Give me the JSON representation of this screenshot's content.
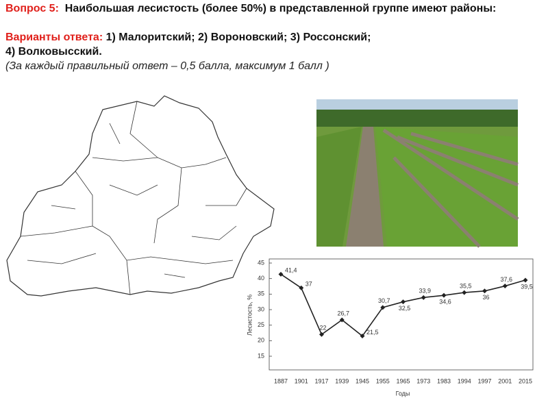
{
  "header": {
    "question_label": "Вопрос 5:",
    "question_text": "Наибольшая лесистость (более 50%) в представленной группе имеют районы:",
    "options_label": "Варианты ответа:",
    "options_line1": "1) Малоритский; 2) Вороновский; 3) Россонский;",
    "options_line2": "4) Волковысский.",
    "note": "(За каждый правильный ответ – 0,5 балла, максимум 1 балл )"
  },
  "chart_data": {
    "type": "line",
    "x_label": "Годы",
    "y_label": "Лесистость, %",
    "categories": [
      "1887",
      "1901",
      "1917",
      "1939",
      "1945",
      "1955",
      "1965",
      "1973",
      "1983",
      "1994",
      "1997",
      "2001",
      "2015"
    ],
    "series": [
      {
        "color": "#222222",
        "values": [
          41.4,
          37,
          22,
          26.7,
          21.5,
          30.7,
          32.5,
          33.9,
          34.6,
          35.5,
          36,
          37.6,
          39.5
        ],
        "value_labels": [
          "41,4",
          "37",
          "22",
          "26,7",
          "21,5",
          "30,7",
          "32,5",
          "33,9",
          "34,6",
          "35,5",
          "36",
          "37,6",
          "39,5"
        ]
      }
    ],
    "ylim": [
      10,
      45
    ],
    "yticks": [
      15,
      20,
      25,
      30,
      35,
      40,
      45
    ]
  }
}
